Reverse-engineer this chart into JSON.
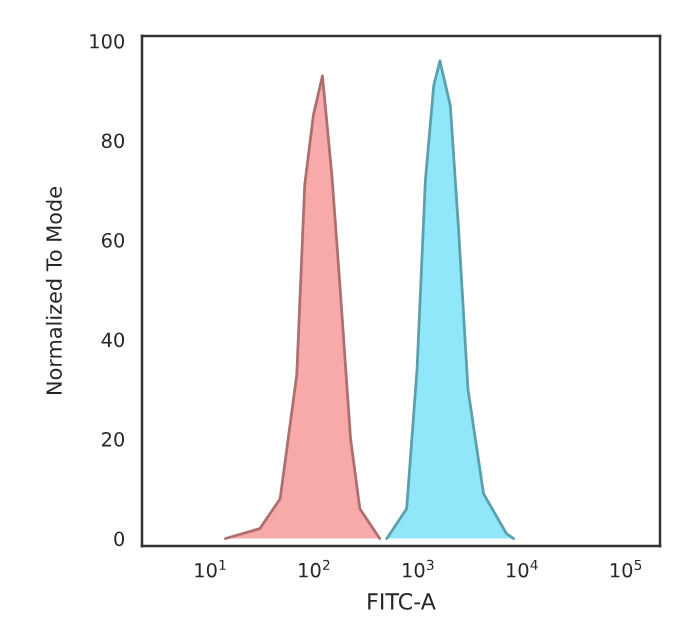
{
  "chart_data": {
    "type": "area",
    "xlabel": "FITC-A",
    "ylabel": "Normalized To Mode",
    "log": "x",
    "xlim": [
      2.2,
      213000
    ],
    "ylim": [
      -1.5,
      101
    ],
    "xticks": [
      {
        "value": 10,
        "label": "10$^{1}$"
      },
      {
        "value": 100,
        "label": "10$^{2}$"
      },
      {
        "value": 1000,
        "label": "10$^{3}$"
      },
      {
        "value": 10000,
        "label": "10$^{4}$"
      },
      {
        "value": 100000,
        "label": "10$^{5}$"
      }
    ],
    "yticks": [
      0,
      20,
      40,
      60,
      80,
      100
    ],
    "grid": false,
    "legend": false,
    "series": [
      {
        "color": "#f7a0a0",
        "x": [
          14,
          30,
          47,
          68,
          81,
          98,
          120,
          148,
          178,
          224,
          275,
          427
        ],
        "values": [
          0,
          2,
          8,
          33,
          71,
          85,
          93,
          73,
          50,
          20,
          6,
          0
        ]
      },
      {
        "color": "#84e4f8",
        "x": [
          500,
          776,
          977,
          1175,
          1413,
          1622,
          2042,
          2455,
          3020,
          4266,
          7079,
          8318
        ],
        "values": [
          0,
          6,
          34,
          72,
          91,
          96,
          87,
          62,
          30,
          9,
          1,
          0
        ]
      }
    ]
  }
}
